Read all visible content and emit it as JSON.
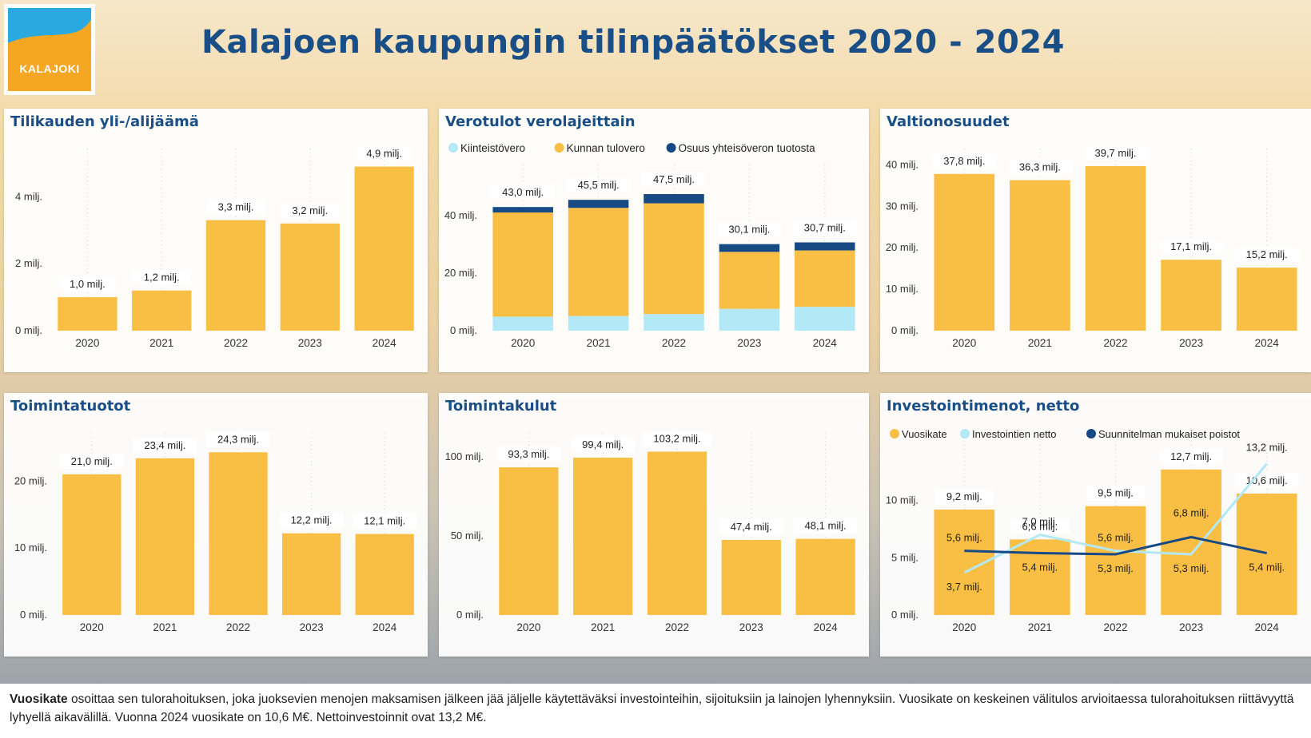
{
  "logo": {
    "text": "KALAJOKI",
    "colors": {
      "primary": "#f5a623",
      "secondary": "#29a9e0"
    }
  },
  "page_title": "Kalajoen kaupungin tilinpäätökset 2020 - 2024",
  "colors": {
    "bar": "#f9bf45",
    "dark": "#174a85",
    "light": "#b3e8f7",
    "title": "#1a4e86"
  },
  "footer": {
    "term": "Vuosikate",
    "text": " osoittaa sen tulorahoituksen, joka juoksevien menojen maksamisen jälkeen jää jäljelle käytettäväksi investointeihin, sijoituksiin ja lainojen lyhennyksiin. Vuosikate on keskeinen välitulos arvioitaessa tulorahoituksen riittävyyttä lyhyellä aikavälillä. Vuonna 2024 vuosikate on 10,6 M€. Nettoinvestoinnit ovat 13,2 M€."
  },
  "chart_data": [
    {
      "id": "surplus",
      "type": "bar",
      "title": "Tilikauden yli-/alijäämä",
      "categories": [
        "2020",
        "2021",
        "2022",
        "2023",
        "2024"
      ],
      "values": [
        1.0,
        1.2,
        3.3,
        3.2,
        4.9
      ],
      "labels": [
        "1,0 milj.",
        "1,2 milj.",
        "3,3 milj.",
        "3,2 milj.",
        "4,9 milj."
      ],
      "ylim": [
        0,
        5.2
      ],
      "yticks": [
        0,
        2,
        4
      ],
      "ytick_labels": [
        "0 milj.",
        "2 milj.",
        "4 milj."
      ],
      "grid": true
    },
    {
      "id": "tax",
      "type": "bar",
      "stacked": true,
      "title": "Verotulot verolajeittain",
      "categories": [
        "2020",
        "2021",
        "2022",
        "2023",
        "2024"
      ],
      "series": [
        {
          "name": "Kiinteistövero",
          "color": "#b3e8f7",
          "values": [
            4.9,
            5.1,
            5.8,
            7.6,
            8.3
          ]
        },
        {
          "name": "Kunnan tulovero",
          "color": "#f9bf45",
          "values": [
            36.2,
            37.6,
            38.5,
            19.8,
            19.6
          ]
        },
        {
          "name": "Osuus yhteisöveron tuotosta",
          "color": "#174a85",
          "values": [
            1.9,
            2.8,
            3.2,
            2.7,
            2.8
          ]
        }
      ],
      "totals": [
        43.0,
        45.5,
        47.5,
        30.1,
        30.7
      ],
      "total_labels": [
        "43,0 milj.",
        "45,5 milj.",
        "47,5 milj.",
        "30,1 milj.",
        "30,7 milj."
      ],
      "ylim": [
        0,
        55
      ],
      "yticks": [
        0,
        20,
        40
      ],
      "ytick_labels": [
        "0 milj.",
        "20 milj.",
        "40 milj."
      ],
      "legend": "top-left",
      "grid": true
    },
    {
      "id": "state",
      "type": "bar",
      "title": "Valtionosuudet",
      "categories": [
        "2020",
        "2021",
        "2022",
        "2023",
        "2024"
      ],
      "values": [
        37.8,
        36.3,
        39.7,
        17.1,
        15.2
      ],
      "labels": [
        "37,8 milj.",
        "36,3 milj.",
        "39,7 milj.",
        "17,1 milj.",
        "15,2 milj."
      ],
      "ylim": [
        0,
        42
      ],
      "yticks": [
        0,
        10,
        20,
        30,
        40
      ],
      "ytick_labels": [
        "0 milj.",
        "10 milj.",
        "20 milj.",
        "30 milj.",
        "40 milj."
      ],
      "grid": true
    },
    {
      "id": "revenue",
      "type": "bar",
      "title": "Toimintatuotot",
      "categories": [
        "2020",
        "2021",
        "2022",
        "2023",
        "2024"
      ],
      "values": [
        21.0,
        23.4,
        24.3,
        12.2,
        12.1
      ],
      "labels": [
        "21,0 milj.",
        "23,4 milj.",
        "24,3 milj.",
        "12,2 milj.",
        "12,1 milj."
      ],
      "ylim": [
        0,
        26
      ],
      "yticks": [
        0,
        10,
        20
      ],
      "ytick_labels": [
        "0 milj.",
        "10 milj.",
        "20 milj."
      ],
      "grid": true
    },
    {
      "id": "expenses",
      "type": "bar",
      "title": "Toimintakulut",
      "categories": [
        "2020",
        "2021",
        "2022",
        "2023",
        "2024"
      ],
      "values": [
        93.3,
        99.4,
        103.2,
        47.4,
        48.1
      ],
      "labels": [
        "93,3 milj.",
        "99,4 milj.",
        "103,2 milj.",
        "47,4 milj.",
        "48,1 milj."
      ],
      "ylim": [
        0,
        110
      ],
      "yticks": [
        0,
        50,
        100
      ],
      "ytick_labels": [
        "0 milj.",
        "50 milj.",
        "100 milj."
      ],
      "grid": true
    },
    {
      "id": "invest",
      "type": "bar",
      "title": "Investointimenot, netto",
      "categories": [
        "2020",
        "2021",
        "2022",
        "2023",
        "2024"
      ],
      "series": [
        {
          "name": "Vuosikate",
          "type": "bar",
          "color": "#f9bf45",
          "values": [
            9.2,
            6.6,
            9.5,
            12.7,
            10.6
          ],
          "labels": [
            "9,2 milj.",
            "6,6 milj.",
            "9,5 milj.",
            "12,7 milj.",
            "10,6 milj."
          ]
        },
        {
          "name": "Investointien netto",
          "type": "line",
          "color": "#b3e8f7",
          "values": [
            3.7,
            7.0,
            5.6,
            5.3,
            13.2
          ],
          "labels": [
            "3,7 milj.",
            "7,0 milj.",
            "5,6 milj.",
            "5,3 milj.",
            "13,2 milj."
          ]
        },
        {
          "name": "Suunnitelman mukaiset poistot",
          "type": "line",
          "color": "#174a85",
          "values": [
            5.6,
            5.4,
            5.3,
            6.8,
            5.4
          ],
          "labels": [
            "5,6 milj.",
            "5,4 milj.",
            "5,3 milj.",
            "6,8 milj.",
            "5,4 milj."
          ]
        }
      ],
      "ylim": [
        0,
        14.5
      ],
      "yticks": [
        0,
        5,
        10
      ],
      "ytick_labels": [
        "0 milj.",
        "5 milj.",
        "10 milj."
      ],
      "legend": "top-left",
      "grid": true
    }
  ]
}
